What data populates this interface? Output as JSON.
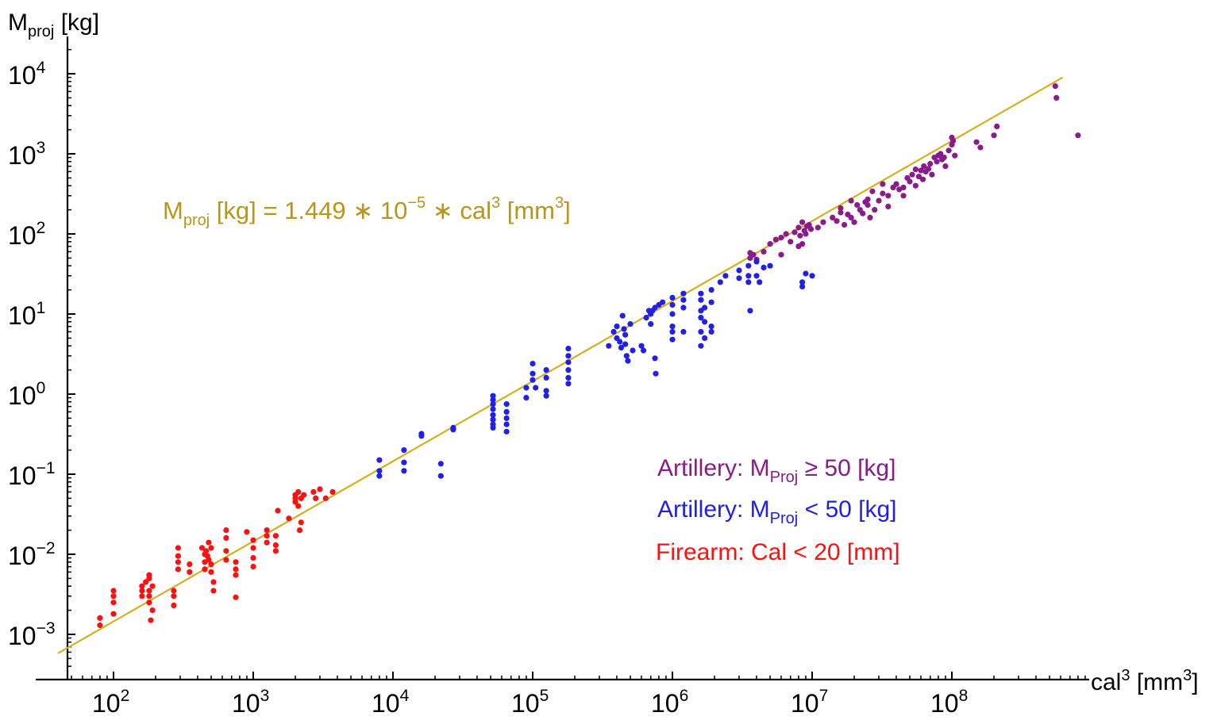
{
  "chart_data": {
    "type": "scatter",
    "x_scale": "log",
    "y_scale": "log",
    "xlim": [
      40,
      900000000
    ],
    "ylim": [
      0.0004,
      25000
    ],
    "grid": false,
    "xlabel": {
      "base": "cal",
      "sup": "3",
      "unit": " [mm",
      "unit_sup": "3",
      "unit_end": "]"
    },
    "ylabel": {
      "base": "M",
      "sub": "proj",
      "unit": " [kg]"
    },
    "x_ticks": [
      {
        "value": 100,
        "base": "10",
        "exp": "2"
      },
      {
        "value": 1000,
        "base": "10",
        "exp": "3"
      },
      {
        "value": 10000,
        "base": "10",
        "exp": "4"
      },
      {
        "value": 100000,
        "base": "10",
        "exp": "5"
      },
      {
        "value": 1000000,
        "base": "10",
        "exp": "6"
      },
      {
        "value": 10000000,
        "base": "10",
        "exp": "7"
      },
      {
        "value": 100000000,
        "base": "10",
        "exp": "8"
      }
    ],
    "y_ticks": [
      {
        "value": 0.001,
        "base": "10",
        "exp": "−3"
      },
      {
        "value": 0.01,
        "base": "10",
        "exp": "−2"
      },
      {
        "value": 0.1,
        "base": "10",
        "exp": "−1"
      },
      {
        "value": 1,
        "base": "10",
        "exp": "0"
      },
      {
        "value": 10,
        "base": "10",
        "exp": "1"
      },
      {
        "value": 100,
        "base": "10",
        "exp": "2"
      },
      {
        "value": 1000,
        "base": "10",
        "exp": "3"
      },
      {
        "value": 10000,
        "base": "10",
        "exp": "4"
      }
    ],
    "fit": {
      "coefficient": 1.449e-05,
      "color": "#d4b020",
      "text_color": "#b8961c",
      "label": {
        "p1": "M",
        "p1_sub": "proj",
        "p2": " [kg] = 1.449 ∗ 10",
        "p2_sup": "−5",
        "p3": " ∗ cal",
        "p3_sup": "3",
        "p4": " [mm",
        "p4_sup": "3",
        "p5": "]"
      }
    },
    "series": [
      {
        "name": "Artillery: M_Proj ≥ 50 [kg]",
        "legend": {
          "p1": "Artillery: M",
          "sub": "Proj",
          "p2": " ≥ 50 [kg]"
        },
        "color": "#8b1a8b",
        "points": [
          [
            3600000.0,
            50
          ],
          [
            3600000.0,
            58
          ],
          [
            3800000.0,
            55
          ],
          [
            4000000.0,
            48
          ],
          [
            4500000.0,
            60
          ],
          [
            5000000.0,
            75
          ],
          [
            5500000.0,
            85
          ],
          [
            6000000.0,
            90
          ],
          [
            6500000.0,
            100
          ],
          [
            7000000.0,
            80
          ],
          [
            7500000.0,
            105
          ],
          [
            8000000.0,
            120
          ],
          [
            8200000.0,
            95
          ],
          [
            8500000.0,
            140
          ],
          [
            8800000.0,
            110
          ],
          [
            9000000.0,
            100
          ],
          [
            9200000.0,
            125
          ],
          [
            9500000.0,
            130
          ],
          [
            9800000.0,
            115
          ],
          [
            8500000.0,
            75
          ],
          [
            8000000.0,
            70
          ],
          [
            6000000.0,
            55
          ],
          [
            11000000.0,
            120
          ],
          [
            12000000.0,
            140
          ],
          [
            14000000.0,
            160
          ],
          [
            15000000.0,
            145
          ],
          [
            16000000.0,
            185
          ],
          [
            16000000.0,
            210
          ],
          [
            17000000.0,
            130
          ],
          [
            18000000.0,
            175
          ],
          [
            19000000.0,
            160
          ],
          [
            20000000.0,
            140
          ],
          [
            21000000.0,
            230
          ],
          [
            22000000.0,
            200
          ],
          [
            23000000.0,
            180
          ],
          [
            24000000.0,
            250
          ],
          [
            25000000.0,
            270
          ],
          [
            25000000.0,
            230
          ],
          [
            26000000.0,
            160
          ],
          [
            28000000.0,
            200
          ],
          [
            30000000.0,
            260
          ],
          [
            32000000.0,
            320
          ],
          [
            35000000.0,
            300
          ],
          [
            35000000.0,
            220
          ],
          [
            38000000.0,
            380
          ],
          [
            40000000.0,
            420
          ],
          [
            42000000.0,
            360
          ],
          [
            45000000.0,
            300
          ],
          [
            48000000.0,
            500
          ],
          [
            50000000.0,
            450
          ],
          [
            52000000.0,
            550
          ],
          [
            55000000.0,
            400
          ],
          [
            58000000.0,
            520
          ],
          [
            60000000.0,
            620
          ],
          [
            63000000.0,
            700
          ],
          [
            65000000.0,
            600
          ],
          [
            68000000.0,
            650
          ],
          [
            70000000.0,
            750
          ],
          [
            72000000.0,
            550
          ],
          [
            75000000.0,
            900
          ],
          [
            78000000.0,
            800
          ],
          [
            80000000.0,
            950
          ],
          [
            83000000.0,
            1000
          ],
          [
            85000000.0,
            850
          ],
          [
            88000000.0,
            900
          ],
          [
            90000000.0,
            700
          ],
          [
            95000000.0,
            1100
          ],
          [
            100000000.0,
            1300
          ],
          [
            100000000.0,
            1600
          ],
          [
            102000000.0,
            1450
          ],
          [
            105000000.0,
            950
          ],
          [
            150000000.0,
            1400
          ],
          [
            160000000.0,
            1200
          ],
          [
            200000000.0,
            1700
          ],
          [
            210000000.0,
            2200
          ],
          [
            550000000.0,
            7000
          ],
          [
            560000000.0,
            5000
          ],
          [
            800000000.0,
            1700
          ],
          [
            45000000.0,
            380
          ],
          [
            27000000.0,
            340
          ],
          [
            32000000.0,
            420
          ],
          [
            19000000.0,
            260
          ],
          [
            62000000.0,
            480
          ],
          [
            55000000.0,
            640
          ]
        ]
      },
      {
        "name": "Artillery: M_Proj < 50 [kg]",
        "legend": {
          "p1": "Artillery: M",
          "sub": "Proj",
          "p2": " < 50 [kg]"
        },
        "color": "#2020e8",
        "points": [
          [
            8000,
            0.15
          ],
          [
            8000,
            0.11
          ],
          [
            8000,
            0.095
          ],
          [
            12000,
            0.2
          ],
          [
            12000,
            0.14
          ],
          [
            12000,
            0.11
          ],
          [
            16000,
            0.32
          ],
          [
            16000,
            0.3
          ],
          [
            22000,
            0.135
          ],
          [
            22000,
            0.095
          ],
          [
            27000,
            0.38
          ],
          [
            27000,
            0.36
          ],
          [
            52000,
            0.95
          ],
          [
            52000,
            0.85
          ],
          [
            52000,
            0.75
          ],
          [
            52000,
            0.65
          ],
          [
            52000,
            0.55
          ],
          [
            52000,
            0.48
          ],
          [
            52000,
            0.42
          ],
          [
            52000,
            0.38
          ],
          [
            65000,
            0.75
          ],
          [
            65000,
            0.6
          ],
          [
            65000,
            0.5
          ],
          [
            65000,
            0.42
          ],
          [
            65000,
            0.34
          ],
          [
            90000,
            1.2
          ],
          [
            90000,
            0.9
          ],
          [
            100000,
            1.5
          ],
          [
            100000,
            1.8
          ],
          [
            100000,
            2.4
          ],
          [
            105000,
            1.2
          ],
          [
            125000,
            2.0
          ],
          [
            125000,
            1.6
          ],
          [
            125000,
            1.1
          ],
          [
            125000,
            0.95
          ],
          [
            180000,
            3.7
          ],
          [
            180000,
            3.0
          ],
          [
            180000,
            2.5
          ],
          [
            180000,
            2.0
          ],
          [
            180000,
            1.6
          ],
          [
            180000,
            1.35
          ],
          [
            350000,
            4.0
          ],
          [
            380000,
            6.0
          ],
          [
            400000,
            7.0
          ],
          [
            400000,
            5.0
          ],
          [
            420000,
            4.5
          ],
          [
            430000,
            3.8
          ],
          [
            440000,
            9.5
          ],
          [
            450000,
            6.5
          ],
          [
            460000,
            5.5
          ],
          [
            460000,
            4.2
          ],
          [
            470000,
            3.0
          ],
          [
            480000,
            2.6
          ],
          [
            500000,
            7.5
          ],
          [
            520000,
            3.5
          ],
          [
            600000,
            4.0
          ],
          [
            620000,
            3.5
          ],
          [
            650000,
            9.0
          ],
          [
            680000,
            11
          ],
          [
            700000,
            10
          ],
          [
            700000,
            7.5
          ],
          [
            720000,
            11
          ],
          [
            750000,
            12
          ],
          [
            750000,
            2.8
          ],
          [
            760000,
            1.8
          ],
          [
            800000,
            13
          ],
          [
            850000,
            14
          ],
          [
            1000000.0,
            16
          ],
          [
            1000000.0,
            13
          ],
          [
            1000000.0,
            10
          ],
          [
            1000000.0,
            7
          ],
          [
            1000000.0,
            6
          ],
          [
            1000000.0,
            4.8
          ],
          [
            1200000.0,
            18
          ],
          [
            1200000.0,
            15
          ],
          [
            1200000.0,
            12
          ],
          [
            1200000.0,
            6
          ],
          [
            1600000.0,
            18
          ],
          [
            1600000.0,
            15
          ],
          [
            1600000.0,
            11
          ],
          [
            1600000.0,
            9
          ],
          [
            1600000.0,
            6
          ],
          [
            1600000.0,
            4.0
          ],
          [
            1700000.0,
            12
          ],
          [
            1700000.0,
            8
          ],
          [
            1700000.0,
            5
          ],
          [
            1900000.0,
            20
          ],
          [
            1900000.0,
            14
          ],
          [
            1900000.0,
            7
          ],
          [
            1900000.0,
            6
          ],
          [
            2200000.0,
            25
          ],
          [
            2400000.0,
            30
          ],
          [
            3000000.0,
            35
          ],
          [
            3000000.0,
            28
          ],
          [
            3500000.0,
            40
          ],
          [
            3500000.0,
            30
          ],
          [
            3500000.0,
            25
          ],
          [
            3600000.0,
            11
          ],
          [
            4000000.0,
            45
          ],
          [
            4000000.0,
            30
          ],
          [
            4200000.0,
            25
          ],
          [
            4500000.0,
            38
          ],
          [
            5000000.0,
            40
          ],
          [
            8500000.0,
            25
          ],
          [
            8500000.0,
            22
          ],
          [
            9000000.0,
            32
          ],
          [
            10000000.0,
            30
          ]
        ]
      },
      {
        "name": "Firearm: Cal < 20 [mm]",
        "legend": {
          "p1": "Firearm: Cal < 20 [mm]",
          "sub": "",
          "p2": ""
        },
        "color": "#ff1010",
        "points": [
          [
            80,
            0.0016
          ],
          [
            80,
            0.0013
          ],
          [
            100,
            0.0035
          ],
          [
            100,
            0.003
          ],
          [
            100,
            0.0025
          ],
          [
            100,
            0.0018
          ],
          [
            160,
            0.004
          ],
          [
            160,
            0.0035
          ],
          [
            160,
            0.003
          ],
          [
            170,
            0.0045
          ],
          [
            180,
            0.0055
          ],
          [
            180,
            0.005
          ],
          [
            180,
            0.0035
          ],
          [
            180,
            0.003
          ],
          [
            180,
            0.0025
          ],
          [
            185,
            0.0015
          ],
          [
            190,
            0.004
          ],
          [
            190,
            0.002
          ],
          [
            270,
            0.0035
          ],
          [
            270,
            0.003
          ],
          [
            270,
            0.0023
          ],
          [
            290,
            0.012
          ],
          [
            290,
            0.0095
          ],
          [
            290,
            0.008
          ],
          [
            290,
            0.0065
          ],
          [
            350,
            0.0075
          ],
          [
            350,
            0.006
          ],
          [
            430,
            0.012
          ],
          [
            450,
            0.01
          ],
          [
            450,
            0.008
          ],
          [
            450,
            0.0065
          ],
          [
            460,
            0.011
          ],
          [
            470,
            0.0095
          ],
          [
            480,
            0.014
          ],
          [
            480,
            0.0085
          ],
          [
            500,
            0.012
          ],
          [
            500,
            0.0075
          ],
          [
            500,
            0.006
          ],
          [
            520,
            0.0045
          ],
          [
            520,
            0.0035
          ],
          [
            640,
            0.02
          ],
          [
            640,
            0.016
          ],
          [
            640,
            0.011
          ],
          [
            640,
            0.0085
          ],
          [
            750,
            0.008
          ],
          [
            750,
            0.0065
          ],
          [
            750,
            0.0055
          ],
          [
            750,
            0.0029
          ],
          [
            900,
            0.019
          ],
          [
            1000,
            0.015
          ],
          [
            1000,
            0.012
          ],
          [
            1000,
            0.009
          ],
          [
            1000,
            0.007
          ],
          [
            1250,
            0.02
          ],
          [
            1250,
            0.017
          ],
          [
            1250,
            0.014
          ],
          [
            1450,
            0.017
          ],
          [
            1450,
            0.013
          ],
          [
            1450,
            0.011
          ],
          [
            1500,
            0.035
          ],
          [
            1800,
            0.028
          ],
          [
            2000,
            0.055
          ],
          [
            2000,
            0.05
          ],
          [
            2000,
            0.045
          ],
          [
            2100,
            0.06
          ],
          [
            2100,
            0.04
          ],
          [
            2150,
            0.02
          ],
          [
            2200,
            0.05
          ],
          [
            2200,
            0.025
          ],
          [
            2300,
            0.055
          ],
          [
            2700,
            0.06
          ],
          [
            2800,
            0.05
          ],
          [
            3000,
            0.065
          ],
          [
            3300,
            0.05
          ],
          [
            3700,
            0.06
          ]
        ]
      }
    ]
  }
}
